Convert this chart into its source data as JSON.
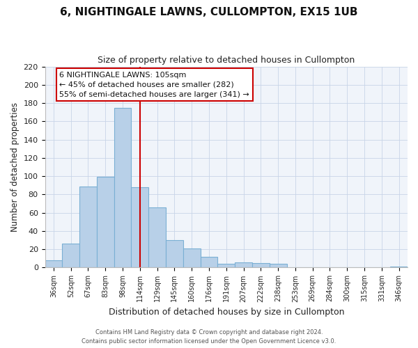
{
  "title": "6, NIGHTINGALE LAWNS, CULLOMPTON, EX15 1UB",
  "subtitle": "Size of property relative to detached houses in Cullompton",
  "xlabel": "Distribution of detached houses by size in Cullompton",
  "ylabel": "Number of detached properties",
  "bar_labels": [
    "36sqm",
    "52sqm",
    "67sqm",
    "83sqm",
    "98sqm",
    "114sqm",
    "129sqm",
    "145sqm",
    "160sqm",
    "176sqm",
    "191sqm",
    "207sqm",
    "222sqm",
    "238sqm",
    "253sqm",
    "269sqm",
    "284sqm",
    "300sqm",
    "315sqm",
    "331sqm",
    "346sqm"
  ],
  "bar_values": [
    8,
    26,
    89,
    99,
    175,
    88,
    66,
    30,
    21,
    12,
    4,
    6,
    5,
    4,
    0,
    0,
    0,
    0,
    0,
    0,
    1
  ],
  "bar_color": "#b8d0e8",
  "bar_edge_color": "#7aafd4",
  "vline_x": 5.0,
  "vline_color": "#cc0000",
  "ylim": [
    0,
    220
  ],
  "yticks": [
    0,
    20,
    40,
    60,
    80,
    100,
    120,
    140,
    160,
    180,
    200,
    220
  ],
  "annotation_title": "6 NIGHTINGALE LAWNS: 105sqm",
  "annotation_line1": "← 45% of detached houses are smaller (282)",
  "annotation_line2": "55% of semi-detached houses are larger (341) →",
  "annotation_box_color": "#ffffff",
  "annotation_box_edge": "#cc0000",
  "footer_line1": "Contains HM Land Registry data © Crown copyright and database right 2024.",
  "footer_line2": "Contains public sector information licensed under the Open Government Licence v3.0."
}
